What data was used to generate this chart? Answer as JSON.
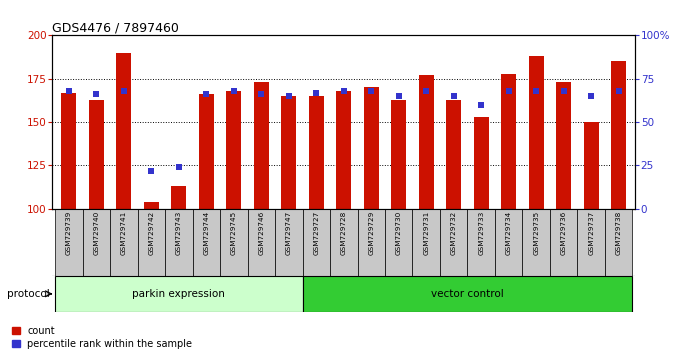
{
  "title": "GDS4476 / 7897460",
  "samples": [
    "GSM729739",
    "GSM729740",
    "GSM729741",
    "GSM729742",
    "GSM729743",
    "GSM729744",
    "GSM729745",
    "GSM729746",
    "GSM729747",
    "GSM729727",
    "GSM729728",
    "GSM729729",
    "GSM729730",
    "GSM729731",
    "GSM729732",
    "GSM729733",
    "GSM729734",
    "GSM729735",
    "GSM729736",
    "GSM729737",
    "GSM729738"
  ],
  "counts": [
    167,
    163,
    190,
    104,
    113,
    166,
    168,
    173,
    165,
    165,
    168,
    170,
    163,
    177,
    163,
    153,
    178,
    188,
    173,
    150,
    185
  ],
  "percentiles": [
    68,
    66,
    68,
    22,
    24,
    66,
    68,
    66,
    65,
    67,
    68,
    68,
    65,
    68,
    65,
    60,
    68,
    68,
    68,
    65,
    68
  ],
  "parkin_count": 9,
  "vector_count": 12,
  "bar_color": "#CC1100",
  "percentile_color": "#3333CC",
  "parkin_color": "#CCFFCC",
  "vector_color": "#33CC33",
  "ylim_left": [
    100,
    200
  ],
  "ylim_right": [
    0,
    100
  ],
  "yticks_left": [
    100,
    125,
    150,
    175,
    200
  ],
  "yticks_right": [
    0,
    25,
    50,
    75,
    100
  ],
  "background_color": "#ffffff",
  "legend_count_label": "count",
  "legend_percentile_label": "percentile rank within the sample",
  "protocol_label": "protocol",
  "parkin_label": "parkin expression",
  "vector_label": "vector control"
}
